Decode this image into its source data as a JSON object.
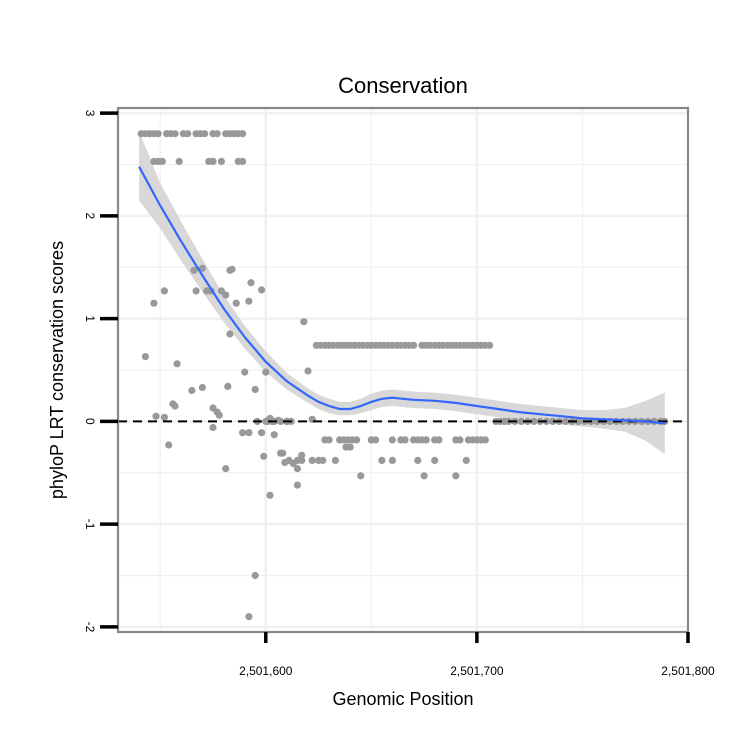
{
  "chart_data": {
    "type": "scatter",
    "title": "Conservation",
    "xlabel": "Genomic Position",
    "ylabel": "phyloP LRT conservation scores",
    "xlim": [
      2501530,
      2501800
    ],
    "ylim": [
      -2.05,
      3.05
    ],
    "x_ticks": [
      2501600,
      2501700,
      2501800
    ],
    "x_tick_labels": [
      "2,501,600",
      "2,501,700",
      "2,501,800"
    ],
    "y_ticks": [
      -2,
      -1,
      0,
      1,
      2,
      3
    ],
    "y_tick_labels": [
      "-2",
      "-1",
      "0",
      "1",
      "2",
      "3"
    ],
    "grid": true,
    "legend": "none",
    "reference_line": {
      "y": 0,
      "style": "dashed"
    },
    "colors": {
      "points": "#999999",
      "smooth": "#3366FF",
      "ribbon": "#D6D6D6",
      "panel_border": "#888888",
      "grid": "#F0F0F0"
    },
    "series": [
      {
        "name": "phyloP scores",
        "type": "scatter",
        "x": [
          2501541,
          2501543,
          2501545,
          2501547,
          2501549,
          2501553,
          2501555,
          2501557,
          2501561,
          2501563,
          2501567,
          2501569,
          2501571,
          2501575,
          2501577,
          2501581,
          2501583,
          2501585,
          2501587,
          2501589,
          2501547,
          2501549,
          2501551,
          2501559,
          2501573,
          2501575,
          2501579,
          2501587,
          2501589,
          2501566,
          2501570,
          2501574,
          2501572,
          2501567,
          2501579,
          2501583,
          2501581,
          2501584,
          2501586,
          2501593,
          2501598,
          2501592,
          2501552,
          2501547,
          2501558,
          2501565,
          2501590,
          2501583,
          2501570,
          2501582,
          2501575,
          2501578,
          2501552,
          2501556,
          2501543,
          2501557,
          2501548,
          2501554,
          2501575,
          2501577,
          2501581,
          2501589,
          2501592,
          2501595,
          2501596,
          2501600,
          2501602,
          2501604,
          2501606,
          2501608,
          2501611,
          2501613,
          2501615,
          2501617,
          2501620,
          2501622,
          2501599,
          2501602,
          2501604,
          2501607,
          2501609,
          2501612,
          2501615,
          2501618,
          2501600,
          2501610,
          2501595,
          2501603,
          2501607,
          2501610,
          2501598,
          2501601,
          2501592,
          2501624,
          2501626,
          2501628,
          2501630,
          2501632,
          2501634,
          2501636,
          2501638,
          2501640,
          2501642,
          2501644,
          2501646,
          2501648,
          2501650,
          2501652,
          2501654,
          2501656,
          2501658,
          2501660,
          2501662,
          2501664,
          2501666,
          2501668,
          2501670,
          2501674,
          2501676,
          2501678,
          2501680,
          2501682,
          2501684,
          2501686,
          2501688,
          2501690,
          2501692,
          2501694,
          2501696,
          2501698,
          2501700,
          2501702,
          2501704,
          2501706,
          2501615,
          2501617,
          2501622,
          2501628,
          2501630,
          2501635,
          2501637,
          2501639,
          2501641,
          2501643,
          2501650,
          2501652,
          2501660,
          2501664,
          2501666,
          2501670,
          2501672,
          2501674,
          2501676,
          2501680,
          2501682,
          2501690,
          2501692,
          2501696,
          2501698,
          2501700,
          2501702,
          2501704,
          2501625,
          2501627,
          2501633,
          2501655,
          2501660,
          2501672,
          2501680,
          2501695,
          2501638,
          2501640,
          2501645,
          2501675,
          2501690,
          2501709,
          2501711,
          2501713,
          2501715,
          2501718,
          2501721,
          2501724,
          2501727,
          2501730,
          2501733,
          2501736,
          2501739,
          2501742,
          2501745,
          2501748,
          2501751,
          2501754,
          2501757,
          2501760,
          2501763,
          2501766,
          2501769,
          2501772,
          2501775,
          2501778,
          2501781,
          2501784,
          2501787,
          2501789
        ],
        "y": [
          2.8,
          2.8,
          2.8,
          2.8,
          2.8,
          2.8,
          2.8,
          2.8,
          2.8,
          2.8,
          2.8,
          2.8,
          2.8,
          2.8,
          2.8,
          2.8,
          2.8,
          2.8,
          2.8,
          2.8,
          2.53,
          2.53,
          2.53,
          2.53,
          2.53,
          2.53,
          2.53,
          2.53,
          2.53,
          1.47,
          1.49,
          1.27,
          1.27,
          1.27,
          1.27,
          1.47,
          1.23,
          1.48,
          1.15,
          1.35,
          1.28,
          1.17,
          1.27,
          1.15,
          0.56,
          0.3,
          0.48,
          0.85,
          0.33,
          0.34,
          0.13,
          0.06,
          0.04,
          0.17,
          0.63,
          0.15,
          0.05,
          -0.23,
          -0.06,
          0.09,
          -0.46,
          -0.11,
          -0.11,
          0.31,
          0.0,
          0.48,
          0.03,
          -0.13,
          0.01,
          -0.31,
          -0.38,
          -0.41,
          -0.46,
          -0.33,
          0.49,
          0.02,
          -0.34,
          -0.72,
          0.0,
          -0.31,
          -0.4,
          0.0,
          -0.62,
          0.97,
          0.0,
          0.0,
          -1.5,
          0.0,
          0.0,
          0.0,
          -0.11,
          0.0,
          -1.9,
          0.74,
          0.74,
          0.74,
          0.74,
          0.74,
          0.74,
          0.74,
          0.74,
          0.74,
          0.74,
          0.74,
          0.74,
          0.74,
          0.74,
          0.74,
          0.74,
          0.74,
          0.74,
          0.74,
          0.74,
          0.74,
          0.74,
          0.74,
          0.74,
          0.74,
          0.74,
          0.74,
          0.74,
          0.74,
          0.74,
          0.74,
          0.74,
          0.74,
          0.74,
          0.74,
          0.74,
          0.74,
          0.74,
          0.74,
          0.74,
          0.74,
          -0.38,
          -0.38,
          -0.38,
          -0.18,
          -0.18,
          -0.18,
          -0.18,
          -0.18,
          -0.18,
          -0.18,
          -0.18,
          -0.18,
          -0.18,
          -0.18,
          -0.18,
          -0.18,
          -0.18,
          -0.18,
          -0.18,
          -0.18,
          -0.18,
          -0.18,
          -0.18,
          -0.18,
          -0.18,
          -0.18,
          -0.18,
          -0.18,
          -0.38,
          -0.38,
          -0.38,
          -0.38,
          -0.38,
          -0.38,
          -0.38,
          -0.38,
          -0.25,
          -0.25,
          -0.53,
          -0.53,
          -0.53,
          0.0,
          0.0,
          0.0,
          0.0,
          0.0,
          0.0,
          0.0,
          0.0,
          0.0,
          0.0,
          0.0,
          0.0,
          0.0,
          0.0,
          0.0,
          0.0,
          0.0,
          0.0,
          0.0,
          0.0,
          0.0,
          0.0,
          0.0,
          0.0,
          0.0,
          0.0,
          0.0,
          0.0,
          0.0
        ]
      },
      {
        "name": "loess fit",
        "type": "line",
        "x": [
          2501540,
          2501550,
          2501560,
          2501570,
          2501580,
          2501590,
          2501600,
          2501610,
          2501620,
          2501625,
          2501630,
          2501635,
          2501640,
          2501645,
          2501650,
          2501655,
          2501660,
          2501665,
          2501670,
          2501680,
          2501690,
          2501700,
          2501710,
          2501720,
          2501730,
          2501740,
          2501750,
          2501760,
          2501770,
          2501780,
          2501789
        ],
        "y": [
          2.48,
          2.1,
          1.75,
          1.42,
          1.1,
          0.82,
          0.58,
          0.39,
          0.25,
          0.19,
          0.15,
          0.12,
          0.12,
          0.15,
          0.19,
          0.22,
          0.23,
          0.22,
          0.21,
          0.2,
          0.18,
          0.15,
          0.12,
          0.09,
          0.07,
          0.05,
          0.03,
          0.02,
          0.01,
          0.0,
          -0.02
        ],
        "ribbon_lower": [
          2.15,
          1.88,
          1.56,
          1.26,
          0.97,
          0.71,
          0.48,
          0.31,
          0.18,
          0.12,
          0.08,
          0.06,
          0.06,
          0.08,
          0.11,
          0.14,
          0.15,
          0.14,
          0.13,
          0.12,
          0.1,
          0.07,
          0.04,
          0.01,
          -0.01,
          -0.03,
          -0.05,
          -0.07,
          -0.1,
          -0.19,
          -0.32
        ],
        "ribbon_upper": [
          2.82,
          2.32,
          1.94,
          1.58,
          1.23,
          0.93,
          0.68,
          0.47,
          0.32,
          0.26,
          0.22,
          0.19,
          0.19,
          0.22,
          0.27,
          0.3,
          0.31,
          0.3,
          0.29,
          0.28,
          0.26,
          0.23,
          0.2,
          0.17,
          0.15,
          0.13,
          0.11,
          0.11,
          0.13,
          0.2,
          0.28
        ]
      }
    ]
  }
}
